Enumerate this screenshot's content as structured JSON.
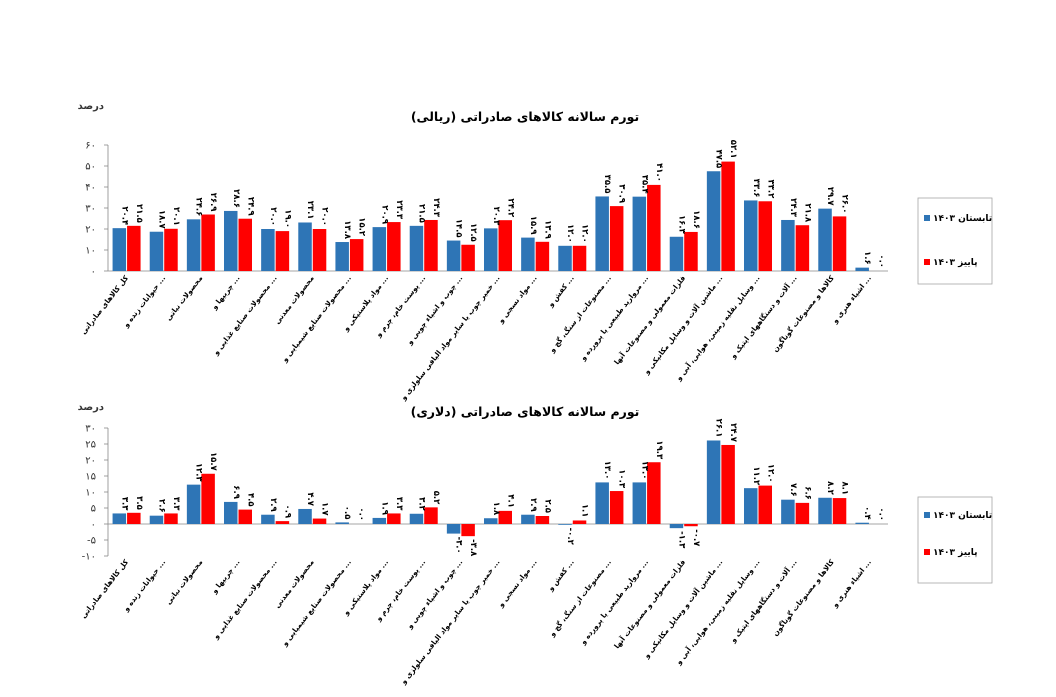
{
  "chart_data": [
    {
      "type": "bar",
      "title": "تورم سالانه کالاهای صادراتی (ریالی)",
      "ylabel": "درصد",
      "ylim": [
        0,
        60
      ],
      "yticks": [
        0,
        10,
        20,
        30,
        40,
        50,
        60
      ],
      "ytick_labels": [
        "۰",
        "۱۰",
        "۲۰",
        "۳۰",
        "۴۰",
        "۵۰",
        "۶۰"
      ],
      "categories": [
        "کل کالاهای صادراتی",
        "حیوانات زنده و ...",
        "محصولات نباتی",
        "چربیها و ...",
        "محصولات صنایع غذایی و ...",
        "محصولات معدنی",
        "محصولات صنایع شیمیایی و ...",
        "مواد پلاستیکی و ...",
        "پوست خام، چرم و ...",
        "چوب و اشیاء چوبی و ...",
        "خمیر چوب یا سایر مواد الیافی سلولزی و ...",
        "مواد نسجی و ...",
        "کفش و ...",
        "مصنوعات از سنگ، گچ و ...",
        "مروارید طبیعی یا پرورده و ...",
        "فلزات معمولی و مصنوعات آنها",
        "ماشین آلات و وسایل مکانیکی و ...",
        "وسایل نقلیه زمینی، هوایی، آبی و ...",
        "آلات و دستگاههای اپتیک و ...",
        "کالاها و مصنوعات گوناگون",
        "اشیاء هنری و ..."
      ],
      "series": [
        {
          "name": "تابستان ۱۴۰۳",
          "color": "#2e75b6",
          "values": [
            20.4,
            18.7,
            24.6,
            28.6,
            20.0,
            23.1,
            13.8,
            20.9,
            21.5,
            14.5,
            20.3,
            15.9,
            12.0,
            35.5,
            35.4,
            16.3,
            47.5,
            33.6,
            24.3,
            29.7,
            1.6
          ],
          "labels": [
            "۲۰.۴",
            "۱۸.۷",
            "۲۴.۶",
            "۲۸.۶",
            "۲۰.۰",
            "۲۳.۱",
            "۱۳.۸",
            "۲۰.۹",
            "۲۱.۵",
            "۱۴.۵",
            "۲۰.۳",
            "۱۵.۹",
            "۱۲.۰",
            "۳۵.۵",
            "۳۵.۴",
            "۱۶.۳",
            "۴۷.۵",
            "۳۳.۶",
            "۲۴.۳",
            "۲۹.۷",
            "۱.۶"
          ]
        },
        {
          "name": "پاییز ۱۴۰۳",
          "color": "#ff0000",
          "values": [
            21.5,
            20.1,
            26.9,
            24.9,
            19.0,
            20.0,
            15.2,
            23.3,
            24.3,
            12.5,
            24.2,
            13.9,
            12.0,
            30.9,
            41.0,
            18.6,
            52.1,
            33.2,
            21.8,
            26.0,
            0.0
          ],
          "labels": [
            "۲۱.۵",
            "۲۰.۱",
            "۲۶.۹",
            "۲۴.۹",
            "۱۹.۰",
            "۲۰.۰",
            "۱۵.۲",
            "۲۳.۳",
            "۲۴.۳",
            "۱۲.۵",
            "۲۴.۲",
            "۱۳.۹",
            "۱۲.۰",
            "۳۰.۹",
            "۴۱.۰",
            "۱۸.۶",
            "۵۲.۱",
            "۳۳.۲",
            "۲۱.۸",
            "۲۶.۰",
            "۰.۰"
          ]
        }
      ],
      "legend_position": "right"
    },
    {
      "type": "bar",
      "title": "تورم سالانه کالاهای صادراتی (دلاری)",
      "ylabel": "درصد",
      "ylim": [
        -10,
        30
      ],
      "yticks": [
        -10,
        -5,
        0,
        5,
        10,
        15,
        20,
        25,
        30
      ],
      "ytick_labels": [
        "-۱۰",
        "-۵",
        "۰",
        "۵",
        "۱۰",
        "۱۵",
        "۲۰",
        "۲۵",
        "۳۰"
      ],
      "categories": [
        "کل کالاهای صادراتی",
        "حیوانات زنده و ...",
        "محصولات نباتی",
        "چربیها و ...",
        "محصولات صنایع غذایی و ...",
        "محصولات معدنی",
        "محصولات صنایع شیمیایی و ...",
        "مواد پلاستیکی و ...",
        "پوست خام، چرم و ...",
        "چوب و اشیاء چوبی و ...",
        "خمیر چوب یا سایر مواد الیافی سلولزی و ...",
        "مواد نسجی و ...",
        "کفش و ...",
        "مصنوعات از سنگ، گچ و ...",
        "مروارید طبیعی یا پرورده و ...",
        "فلزات معمولی و مصنوعات آنها",
        "ماشین آلات و وسایل مکانیکی و ...",
        "وسایل نقلیه زمینی، هوایی، آبی و ...",
        "آلات و دستگاههای اپتیک و ...",
        "کالاها و مصنوعات گوناگون",
        "اشیاء هنری و ..."
      ],
      "series": [
        {
          "name": "تابستان ۱۴۰۳",
          "color": "#2e75b6",
          "values": [
            3.3,
            2.6,
            12.3,
            6.9,
            2.9,
            4.7,
            0.5,
            1.9,
            3.2,
            -3.0,
            1.8,
            2.9,
            -0.2,
            13.0,
            13.0,
            -1.3,
            26.1,
            11.2,
            7.6,
            8.2,
            0.4
          ],
          "labels": [
            "۳.۳",
            "۲.۶",
            "۱۲.۳",
            "۶.۹",
            "۲.۹",
            "۴.۷",
            "۰.۵",
            "۱.۹",
            "۳.۲",
            "-۳.۰",
            "۱.۸",
            "۲.۹",
            "-۰.۲",
            "۱۳.۰",
            "۱۳.۰",
            "-۱.۳",
            "۲۶.۱",
            "۱۱.۲",
            "۷.۶",
            "۸.۲",
            "۰.۴"
          ]
        },
        {
          "name": "پاییز ۱۴۰۳",
          "color": "#ff0000",
          "values": [
            3.5,
            3.3,
            15.7,
            4.5,
            0.9,
            1.7,
            0.0,
            3.3,
            5.2,
            -3.8,
            4.1,
            2.5,
            1.1,
            10.3,
            19.3,
            -0.7,
            24.7,
            12.0,
            6.6,
            8.1,
            0.0
          ],
          "labels": [
            "۳.۵",
            "۳.۳",
            "۱۵.۷",
            "۴.۵",
            "۰.۹",
            "۱.۷",
            "۰.۰",
            "۳.۳",
            "۵.۲",
            "-۳.۸",
            "۴.۱",
            "۲.۵",
            "۱.۱",
            "۱۰.۳",
            "۱۹.۳",
            "-۰.۷",
            "۲۴.۷",
            "۱۲.۰",
            "۶.۶",
            "۸.۱",
            "۰.۰"
          ]
        }
      ],
      "legend_position": "right"
    }
  ]
}
